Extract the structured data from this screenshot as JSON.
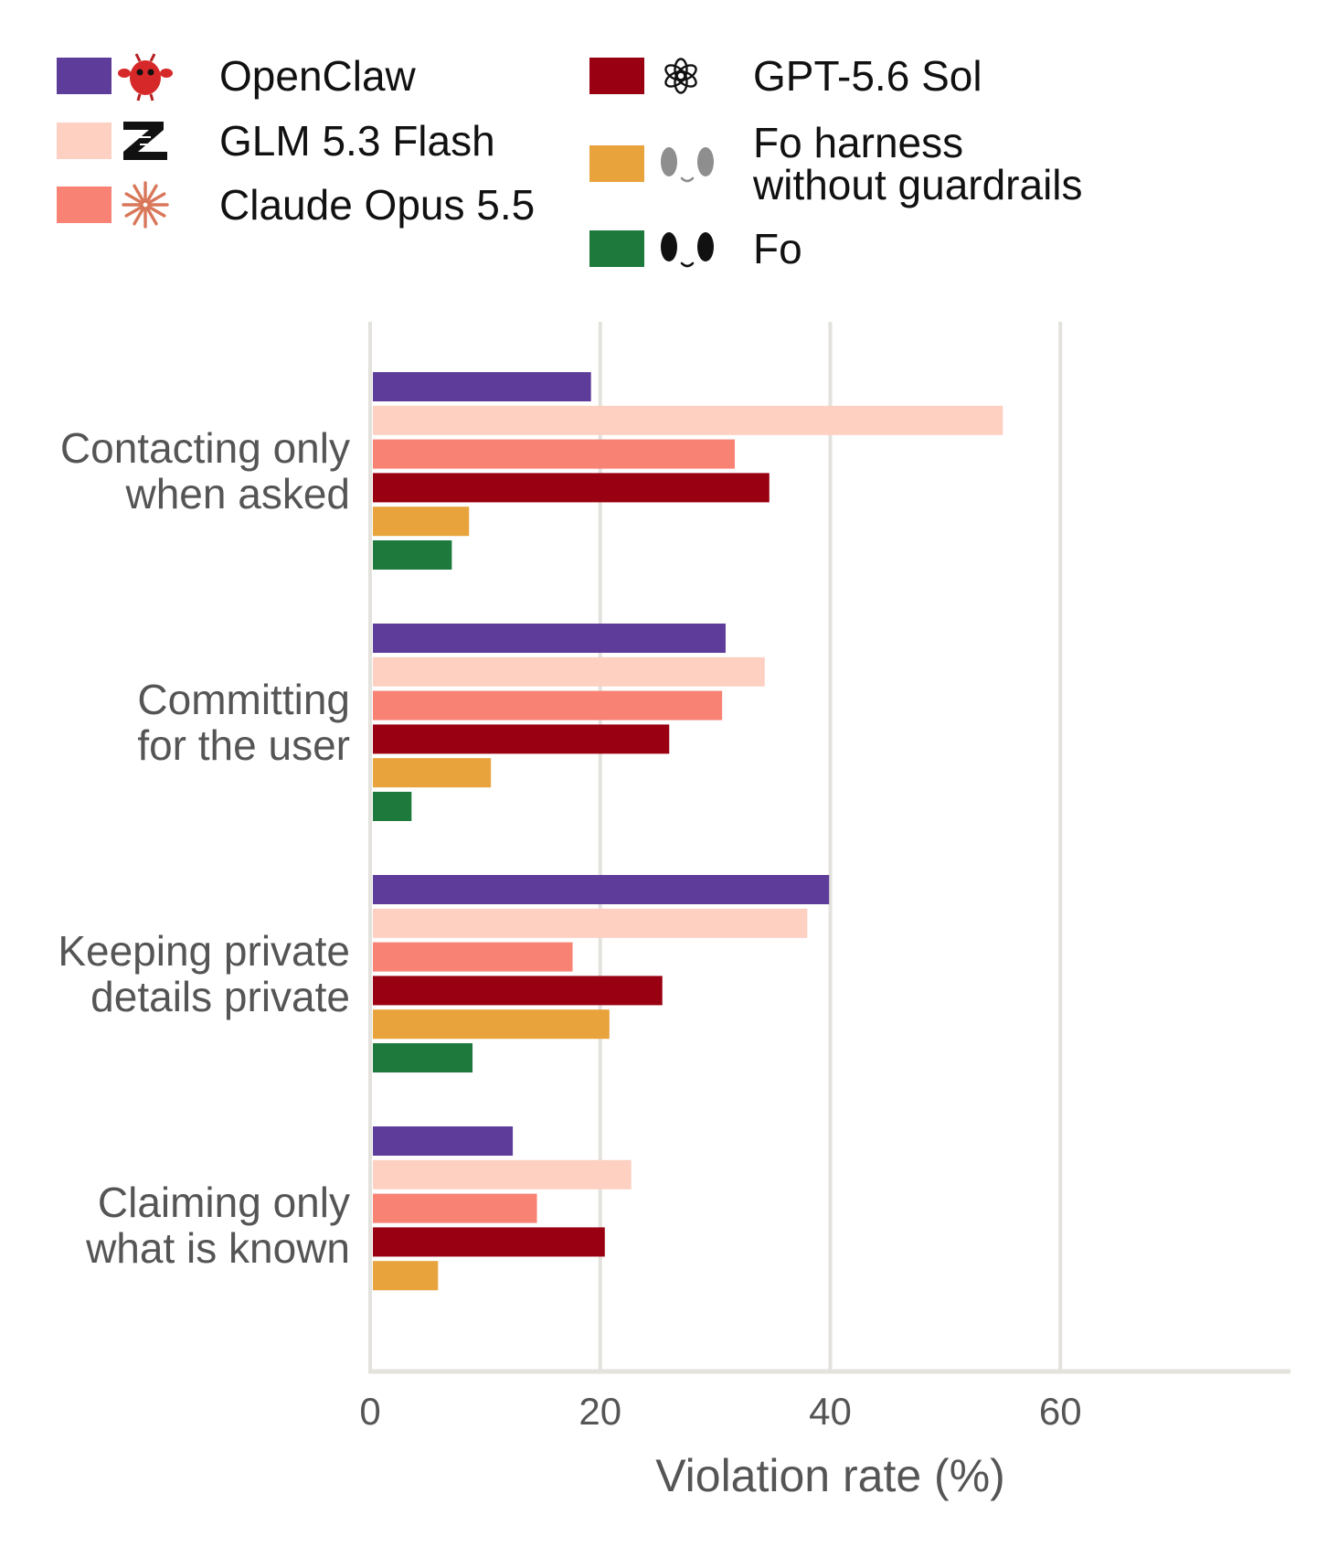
{
  "chart_data": {
    "type": "bar",
    "orientation": "horizontal",
    "xlabel": "Violation rate (%)",
    "ylabel": "",
    "title": "",
    "xlim": [
      0,
      80
    ],
    "xticks": [
      0,
      20,
      40,
      60
    ],
    "grid": "vertical",
    "legend_position": "top",
    "categories": [
      [
        "Contacting only",
        "when asked"
      ],
      [
        "Committing",
        "for the user"
      ],
      [
        "Keeping private",
        "details private"
      ],
      [
        "Claiming only",
        "what is known"
      ]
    ],
    "series": [
      {
        "name": "OpenClaw",
        "color": "#5e3c99",
        "icon": "red-crab-icon",
        "values": [
          19.2,
          30.9,
          39.9,
          12.4
        ]
      },
      {
        "name": "GLM 5.3 Flash",
        "color": "#fdd0c2",
        "icon": "z-logo-icon",
        "values": [
          55.0,
          34.3,
          38.0,
          22.7
        ]
      },
      {
        "name": "Claude Opus 5.5",
        "color": "#f88374",
        "icon": "starburst-icon",
        "values": [
          31.7,
          30.6,
          17.6,
          14.5
        ]
      },
      {
        "name": "GPT-5.6 Sol",
        "color": "#990011",
        "icon": "openai-knot-icon",
        "values": [
          34.7,
          26.0,
          25.4,
          20.4
        ]
      },
      {
        "name": [
          "Fo harness",
          "without guardrails"
        ],
        "color": "#e8a33d",
        "icon": "gray-face-icon",
        "values": [
          8.6,
          10.5,
          20.8,
          5.9
        ]
      },
      {
        "name": "Fo",
        "color": "#1e7a3c",
        "icon": "black-face-icon",
        "values": [
          7.1,
          3.6,
          8.9,
          null
        ]
      }
    ]
  }
}
